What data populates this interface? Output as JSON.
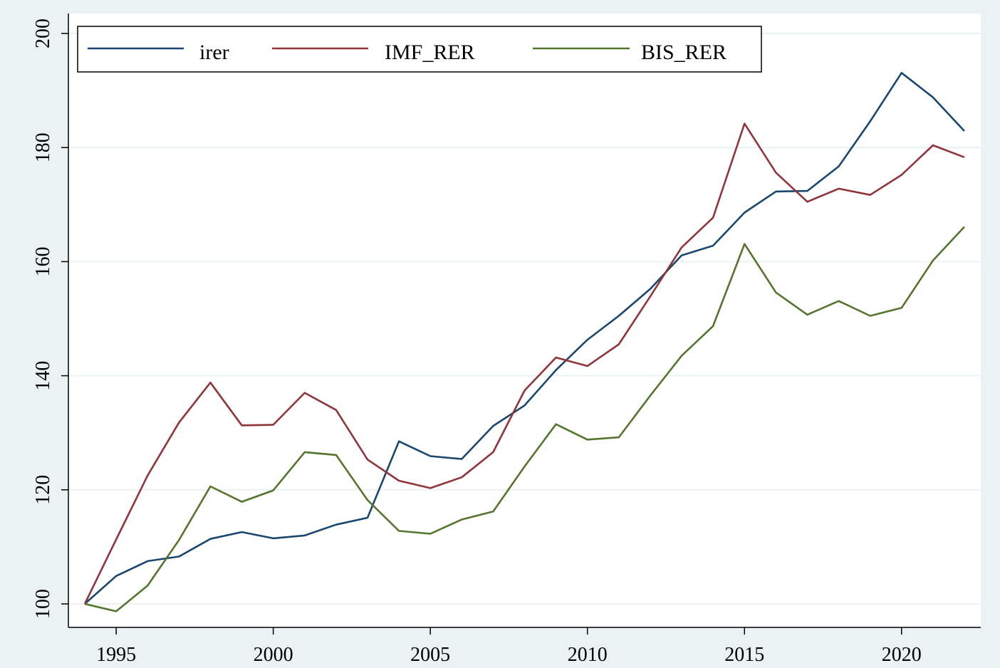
{
  "chart_data": {
    "type": "line",
    "title": "",
    "xlabel": "",
    "ylabel": "",
    "xlim": [
      1994,
      2022
    ],
    "ylim": [
      100,
      200
    ],
    "x_ticks": [
      1995,
      2000,
      2005,
      2010,
      2015,
      2020
    ],
    "y_ticks": [
      100,
      120,
      140,
      160,
      180,
      200
    ],
    "grid": true,
    "legend_position": "top",
    "x": [
      1994,
      1995,
      1996,
      1997,
      1998,
      1999,
      2000,
      2001,
      2002,
      2003,
      2004,
      2005,
      2006,
      2007,
      2008,
      2009,
      2010,
      2011,
      2012,
      2013,
      2014,
      2015,
      2016,
      2017,
      2018,
      2019,
      2020,
      2021,
      2022
    ],
    "series": [
      {
        "name": "irer",
        "color": "#1a476f",
        "values": [
          100,
          104.9,
          107.5,
          108.3,
          111.4,
          112.6,
          111.5,
          112.0,
          113.9,
          115.1,
          128.5,
          125.9,
          125.4,
          131.2,
          134.8,
          141.0,
          146.3,
          150.5,
          155.2,
          161.1,
          162.8,
          168.6,
          172.3,
          172.4,
          176.7,
          184.6,
          193.1,
          188.8,
          182.9
        ]
      },
      {
        "name": "IMF_RER",
        "color": "#90353b",
        "values": [
          100,
          111.3,
          122.5,
          131.8,
          138.8,
          131.3,
          131.4,
          137.0,
          134.0,
          125.3,
          121.6,
          120.3,
          122.2,
          126.6,
          137.4,
          143.2,
          141.7,
          145.5,
          153.9,
          162.5,
          167.7,
          184.2,
          175.6,
          170.5,
          172.8,
          171.7,
          175.2,
          180.4,
          178.3
        ]
      },
      {
        "name": "BIS_RER",
        "color": "#55752f",
        "values": [
          100,
          98.7,
          103.2,
          111.2,
          120.6,
          117.9,
          119.9,
          126.6,
          126.1,
          118.2,
          112.8,
          112.3,
          114.8,
          116.2,
          124.1,
          131.5,
          128.8,
          129.2,
          136.5,
          143.5,
          148.7,
          163.1,
          154.6,
          150.7,
          153.1,
          150.5,
          151.9,
          160.2,
          166.1
        ]
      }
    ]
  }
}
